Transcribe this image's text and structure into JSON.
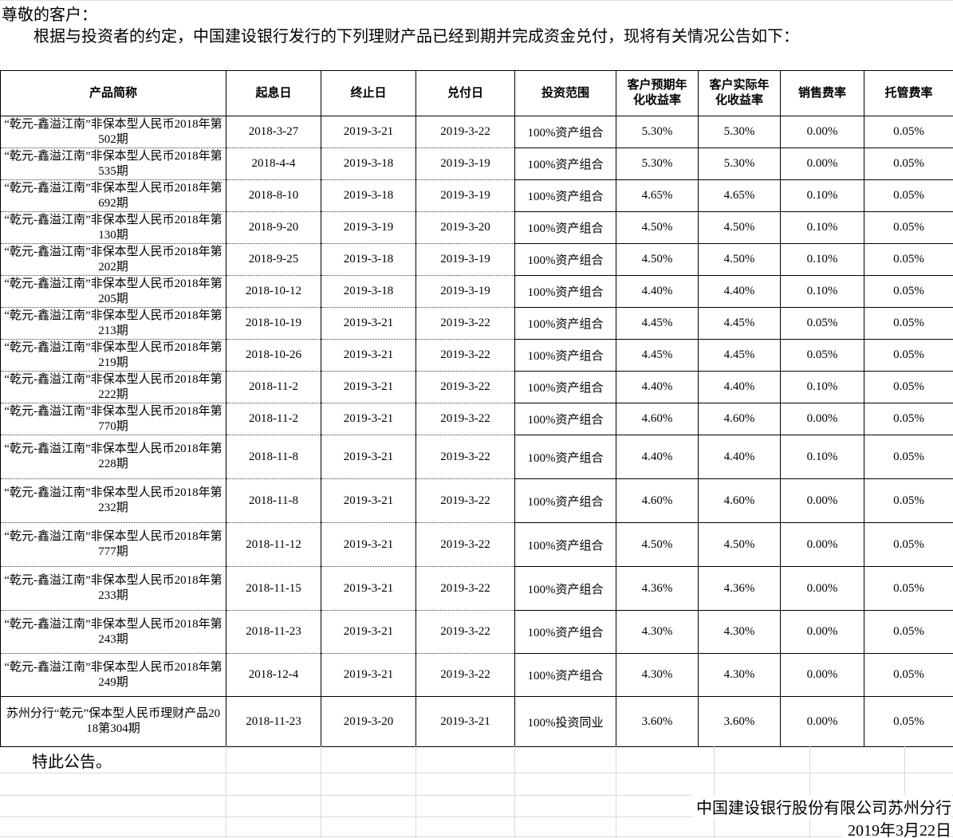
{
  "page": {
    "salutation": "尊敬的客户：",
    "intro": "根据与投资者的约定，中国建设银行发行的下列理财产品已经到期并完成资金兑付，现将有关情况公告如下：",
    "closing": "特此公告。",
    "footer": {
      "issuer": "中国建设银行股份有限公司苏州分行",
      "date": "2019年3月22日"
    }
  },
  "table": {
    "column_keys": [
      "product-name",
      "value-date",
      "end-date",
      "payment-date",
      "investment-scope",
      "expected-annual-yield",
      "actual-annual-yield",
      "sales-fee-rate",
      "custody-fee-rate"
    ],
    "headers": [
      "产品简称",
      "起息日",
      "终止日",
      "兑付日",
      "投资范围",
      "客户预期年化收益率",
      "客户实际年化收益率",
      "销售费率",
      "托管费率"
    ],
    "rows": [
      [
        "“乾元-鑫溢江南”非保本型人民币2018年第502期",
        "2018-3-27",
        "2019-3-21",
        "2019-3-22",
        "100%资产组合",
        "5.30%",
        "5.30%",
        "0.00%",
        "0.05%"
      ],
      [
        "“乾元-鑫溢江南”非保本型人民币2018年第535期",
        "2018-4-4",
        "2019-3-18",
        "2019-3-19",
        "100%资产组合",
        "5.30%",
        "5.30%",
        "0.00%",
        "0.05%"
      ],
      [
        "“乾元-鑫溢江南”非保本型人民币2018年第692期",
        "2018-8-10",
        "2019-3-18",
        "2019-3-19",
        "100%资产组合",
        "4.65%",
        "4.65%",
        "0.10%",
        "0.05%"
      ],
      [
        "“乾元-鑫溢江南”非保本型人民币2018年第130期",
        "2018-9-20",
        "2019-3-19",
        "2019-3-20",
        "100%资产组合",
        "4.50%",
        "4.50%",
        "0.10%",
        "0.05%"
      ],
      [
        "“乾元-鑫溢江南”非保本型人民币2018年第202期",
        "2018-9-25",
        "2019-3-18",
        "2019-3-19",
        "100%资产组合",
        "4.50%",
        "4.50%",
        "0.10%",
        "0.05%"
      ],
      [
        "“乾元-鑫溢江南”非保本型人民币2018年第205期",
        "2018-10-12",
        "2019-3-18",
        "2019-3-19",
        "100%资产组合",
        "4.40%",
        "4.40%",
        "0.10%",
        "0.05%"
      ],
      [
        "“乾元-鑫溢江南”非保本型人民币2018年第213期",
        "2018-10-19",
        "2019-3-21",
        "2019-3-22",
        "100%资产组合",
        "4.45%",
        "4.45%",
        "0.05%",
        "0.05%"
      ],
      [
        "“乾元-鑫溢江南”非保本型人民币2018年第219期",
        "2018-10-26",
        "2019-3-21",
        "2019-3-22",
        "100%资产组合",
        "4.45%",
        "4.45%",
        "0.05%",
        "0.05%"
      ],
      [
        "“乾元-鑫溢江南”非保本型人民币2018年第222期",
        "2018-11-2",
        "2019-3-21",
        "2019-3-22",
        "100%资产组合",
        "4.40%",
        "4.40%",
        "0.10%",
        "0.05%"
      ],
      [
        "“乾元-鑫溢江南”非保本型人民币2018年第770期",
        "2018-11-2",
        "2019-3-21",
        "2019-3-22",
        "100%资产组合",
        "4.60%",
        "4.60%",
        "0.00%",
        "0.05%"
      ],
      [
        "“乾元-鑫溢江南”非保本型人民币2018年第228期",
        "2018-11-8",
        "2019-3-21",
        "2019-3-22",
        "100%资产组合",
        "4.40%",
        "4.40%",
        "0.10%",
        "0.05%"
      ],
      [
        "“乾元-鑫溢江南”非保本型人民币2018年第232期",
        "2018-11-8",
        "2019-3-21",
        "2019-3-22",
        "100%资产组合",
        "4.60%",
        "4.60%",
        "0.00%",
        "0.05%"
      ],
      [
        "“乾元-鑫溢江南”非保本型人民币2018年第777期",
        "2018-11-12",
        "2019-3-21",
        "2019-3-22",
        "100%资产组合",
        "4.50%",
        "4.50%",
        "0.00%",
        "0.05%"
      ],
      [
        "“乾元-鑫溢江南”非保本型人民币2018年第233期",
        "2018-11-15",
        "2019-3-21",
        "2019-3-22",
        "100%资产组合",
        "4.36%",
        "4.36%",
        "0.00%",
        "0.05%"
      ],
      [
        "“乾元-鑫溢江南”非保本型人民币2018年第243期",
        "2018-11-23",
        "2019-3-21",
        "2019-3-22",
        "100%资产组合",
        "4.30%",
        "4.30%",
        "0.00%",
        "0.05%"
      ],
      [
        "“乾元-鑫溢江南”非保本型人民币2018年第249期",
        "2018-12-4",
        "2019-3-21",
        "2019-3-22",
        "100%资产组合",
        "4.30%",
        "4.30%",
        "0.00%",
        "0.05%"
      ],
      [
        "苏州分行“乾元”保本型人民币理财产品2018第304期",
        "2018-11-23",
        "2019-3-20",
        "2019-3-21",
        "100%投资同业",
        "3.60%",
        "3.60%",
        "0.00%",
        "0.05%"
      ]
    ]
  },
  "colors": {
    "text": "#000000",
    "table_border": "#000000",
    "spreadsheet_gridline": "#d9d9d9",
    "background": "#ffffff"
  }
}
